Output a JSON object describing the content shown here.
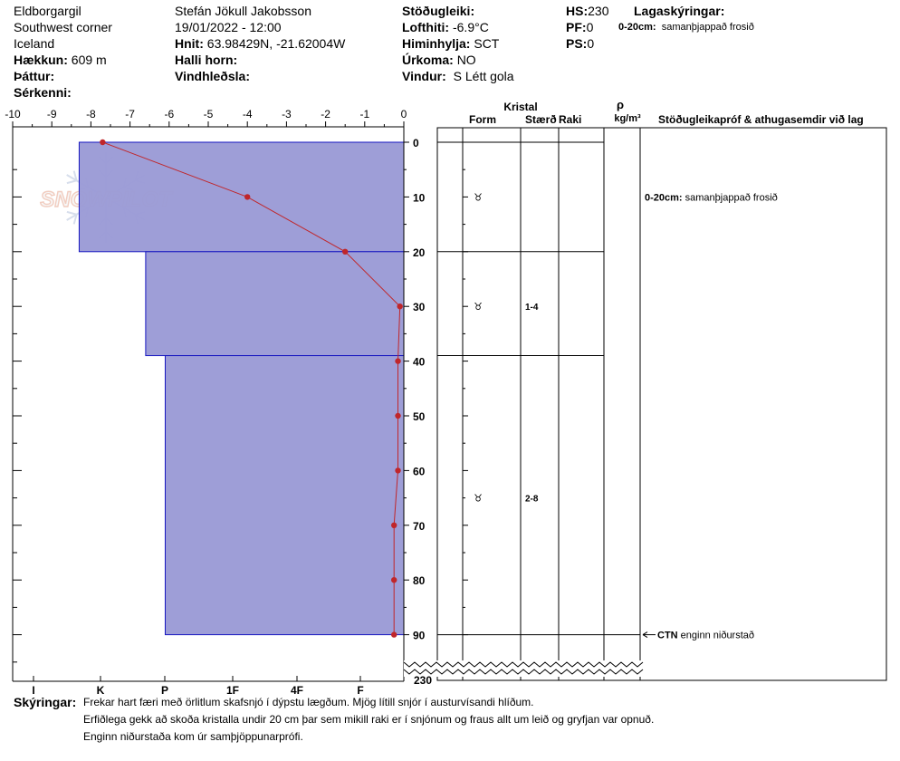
{
  "header": {
    "location": {
      "name": "Eldborgargil",
      "area": "Southwest corner",
      "country": "Iceland",
      "elevation_label": "Hækkun:",
      "elevation_value": "609 m",
      "range_label": "Þáttur:",
      "range_value": "",
      "features_label": "Sérkenni:",
      "features_value": ""
    },
    "observation": {
      "observer": "Stefán Jökull Jakobsson",
      "datetime": "19/01/2022 - 12:00",
      "coords_label": "Hnit:",
      "coords_value": "63.98429N, -21.62004W",
      "slope_label": "Halli horn:",
      "slope_value": "",
      "wind_loading_label": "Vindhleðsla:",
      "wind_loading_value": ""
    },
    "weather": {
      "stability_label": "Stöðugleiki:",
      "stability_value": "",
      "air_temp_label": "Lofthiti:",
      "air_temp_value": "-6.9°C",
      "sky_label": "Himinhylja:",
      "sky_value": "SCT",
      "precip_label": "Úrkoma:",
      "precip_value": "NO",
      "wind_label": "Vindur:",
      "wind_value": "S Létt gola"
    },
    "snow": {
      "hs_label": "HS:",
      "hs_value": "230",
      "pf_label": "PF:",
      "pf_value": "0",
      "ps_label": "PS:",
      "ps_value": "0"
    },
    "layer_notes": {
      "title": "Lagaskýringar:",
      "entries": [
        {
          "range": "0-20cm:",
          "text": "samanþjappað frosið"
        }
      ]
    }
  },
  "watermark": {
    "text": "SNOWPILOT"
  },
  "chart_data": {
    "type": "snow-profile",
    "temperature_axis": {
      "ticks": [
        "-10",
        "-9",
        "-8",
        "-7",
        "-6",
        "-5",
        "-4",
        "-3",
        "-2",
        "-1",
        "0"
      ],
      "range": [
        -10,
        0
      ]
    },
    "depth_axis": {
      "ticks": [
        "0",
        "10",
        "20",
        "30",
        "40",
        "50",
        "60",
        "70",
        "80",
        "90"
      ],
      "range": [
        0,
        90
      ],
      "break_label": "230"
    },
    "hardness_axis": {
      "ticks": [
        "I",
        "K",
        "P",
        "1F",
        "4F",
        "F"
      ]
    },
    "layers": [
      {
        "top": 0,
        "bottom": 20,
        "hardness_index": 0.83
      },
      {
        "top": 20,
        "bottom": 39,
        "hardness_index": 0.66
      },
      {
        "top": 39,
        "bottom": 90,
        "hardness_index": 0.61
      }
    ],
    "temperature_profile": [
      {
        "depth": 0,
        "temp": -7.7
      },
      {
        "depth": 10,
        "temp": -4.0
      },
      {
        "depth": 20,
        "temp": -1.5
      },
      {
        "depth": 30,
        "temp": -0.1
      },
      {
        "depth": 40,
        "temp": -0.15
      },
      {
        "depth": 50,
        "temp": -0.15
      },
      {
        "depth": 60,
        "temp": -0.15
      },
      {
        "depth": 70,
        "temp": -0.25
      },
      {
        "depth": 80,
        "temp": -0.25
      },
      {
        "depth": 90,
        "temp": -0.25
      }
    ],
    "crystal_columns": {
      "group_title": "Kristal",
      "form": "Form",
      "size": "Stærð",
      "moisture": "Raki",
      "density_symbol": "ρ",
      "density_unit": "kg/m³",
      "comments": "Stöðugleikapróf & athugasemdir við lag"
    },
    "crystals": [
      {
        "depth": 10,
        "form_symbol": "♉",
        "size": ""
      },
      {
        "depth": 30,
        "form_symbol": "♉",
        "size": "1-4"
      },
      {
        "depth": 65,
        "form_symbol": "♉",
        "size": "2-8"
      }
    ],
    "comment_entries": [
      {
        "depth": 10,
        "range": "0-20cm:",
        "text": "samanþjappað frosið"
      }
    ],
    "tests": [
      {
        "depth": 90,
        "code": "CTN",
        "text": "enginn niðurstað"
      }
    ]
  },
  "footer": {
    "label": "Skýringar:",
    "lines": [
      "Frekar hart færi með örlitlum skafsnjó í dýpstu lægðum. Mjög lítill snjór í austurvísandi hlíðum.",
      "Erfiðlega gekk að skoða kristalla undir 20 cm þar sem mikill raki er í snjónum og fraus allt um leið og gryfjan var opnuð.",
      "Enginn niðurstaða kom úr samþjöppunarprófi."
    ]
  }
}
